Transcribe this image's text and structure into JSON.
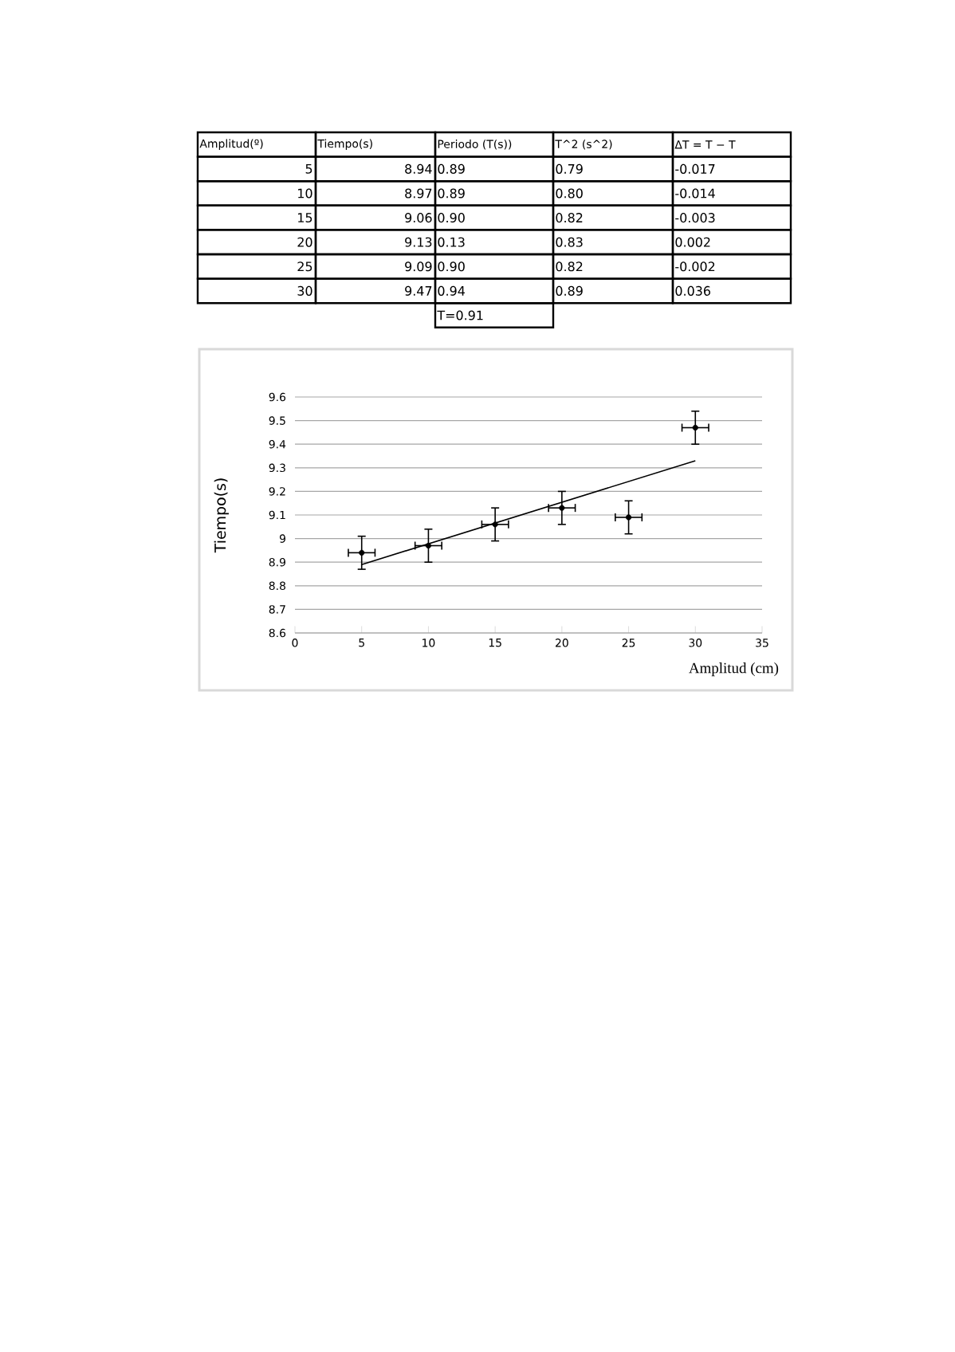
{
  "chart_data": {
    "type": "scatter",
    "x": [
      5,
      10,
      15,
      20,
      25,
      30
    ],
    "xlabel": "Amplitud (cm)",
    "ylabel": "Tiempo(s)",
    "series": [
      {
        "color": "#000000",
        "marker": "circle",
        "values": [
          8.94,
          8.97,
          9.06,
          9.13,
          9.09,
          9.47
        ],
        "errors": [
          0.07,
          0.07,
          0.07,
          0.07,
          0.07,
          0.07
        ],
        "xerrors": [
          1,
          1,
          1,
          1,
          1,
          1
        ]
      },
      {
        "type": "line",
        "color": "#000000",
        "x": [
          5,
          30
        ],
        "values": [
          8.89,
          9.33
        ],
        "marker": "none"
      }
    ],
    "xlim": [
      0,
      35
    ],
    "xticks": [
      0,
      5,
      10,
      15,
      20,
      25,
      30,
      35
    ],
    "ylim": [
      8.6,
      9.6
    ],
    "yticks": [
      8.6,
      8.7,
      8.8,
      8.9,
      9,
      9.1,
      9.2,
      9.3,
      9.4,
      9.5,
      9.6
    ],
    "grid": "y",
    "line_style": "solid",
    "annotations": [
      "Amplitud(º)",
      "Tiempo(s)",
      "Periodo (T(s))",
      "T^2 (s^2)",
      "ΔT = T − T",
      "5",
      "8.94",
      "0.89",
      "0.79",
      "-0.017",
      "10",
      "8.97",
      "0.89",
      "0.80",
      "-0.014",
      "15",
      "9.06",
      "0.90",
      "0.82",
      "-0.003",
      "20",
      "9.13",
      "0.13",
      "0.83",
      "0.002",
      "25",
      "9.09",
      "0.90",
      "0.82",
      "-0.002",
      "30",
      "9.47",
      "0.94",
      "0.89",
      "0.036",
      "T=0.91"
    ]
  }
}
